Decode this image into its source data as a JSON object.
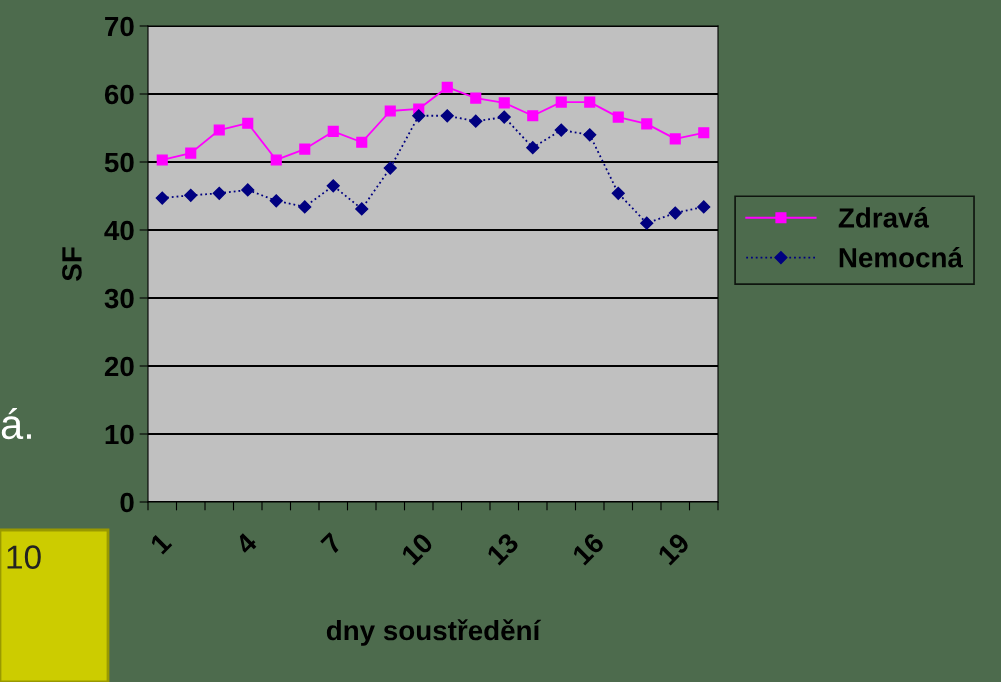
{
  "chart_data": {
    "type": "line",
    "xlabel": "dny soustředění",
    "ylabel": "SF",
    "categories": [
      "1",
      null,
      null,
      "4",
      null,
      null,
      "7",
      null,
      null,
      "10",
      null,
      null,
      "13",
      null,
      null,
      "16",
      null,
      null,
      "19",
      null
    ],
    "series": [
      {
        "name": "Zdravá",
        "color": "#ff00ff",
        "marker": "square",
        "line_style": "solid",
        "values": [
          50.3,
          51.3,
          54.7,
          55.7,
          50.3,
          51.9,
          54.5,
          52.9,
          57.5,
          57.8,
          61.0,
          59.4,
          58.7,
          56.8,
          58.8,
          58.8,
          56.6,
          55.6,
          53.4,
          54.3
        ]
      },
      {
        "name": "Nemocná",
        "color": "#000080",
        "marker": "diamond",
        "line_style": "dotted",
        "values": [
          44.7,
          45.1,
          45.4,
          45.9,
          44.3,
          43.4,
          46.5,
          43.1,
          49.1,
          56.8,
          56.8,
          56.0,
          56.6,
          52.1,
          54.7,
          54.0,
          45.4,
          41.0,
          42.5,
          43.4
        ]
      }
    ],
    "ylim": [
      0,
      70
    ],
    "yticks": [
      0,
      10,
      20,
      30,
      40,
      50,
      60,
      70
    ],
    "grid": "y",
    "legend": "right",
    "annotations": [
      "á.",
      "10"
    ]
  }
}
